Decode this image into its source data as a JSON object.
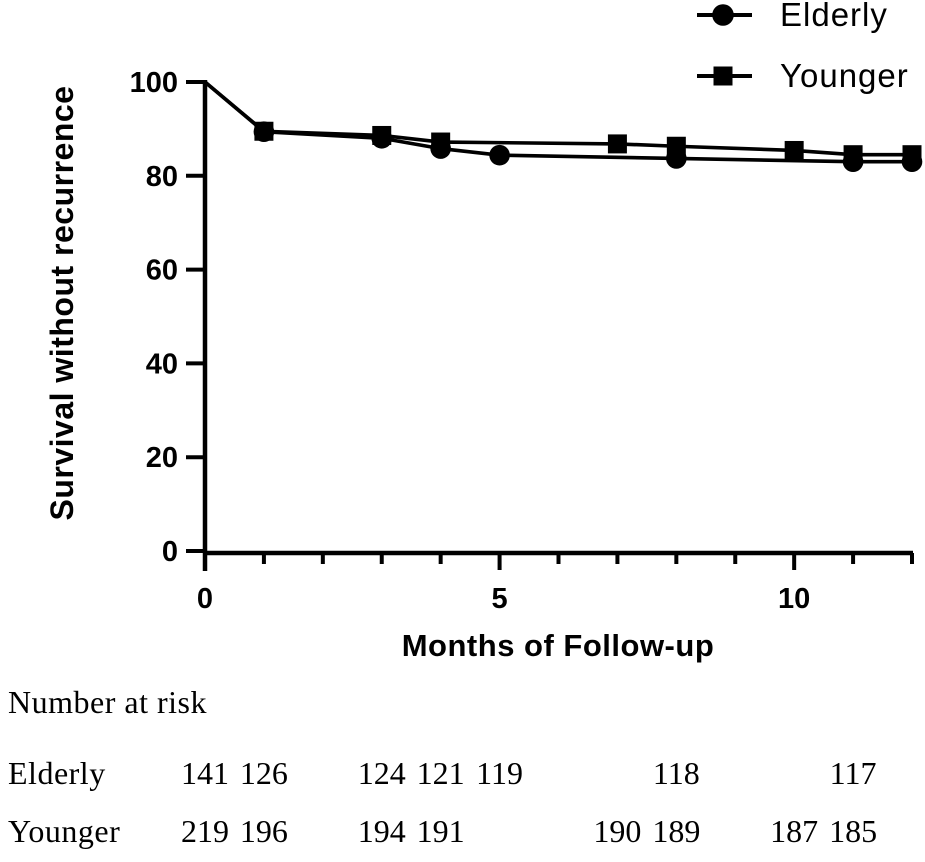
{
  "figure": {
    "background_color": "#ffffff",
    "ink_color": "#000000"
  },
  "chart_data": {
    "type": "line",
    "title": "",
    "xlabel": "Months of Follow-up",
    "ylabel": "Survival without recurrence",
    "xlim": [
      0,
      12
    ],
    "ylim": [
      0,
      100
    ],
    "x_major_ticks": [
      0,
      5,
      10
    ],
    "x_major_tick_labels": [
      "0",
      "5",
      "10"
    ],
    "x_minor_ticks": [
      1,
      2,
      3,
      4,
      6,
      7,
      8,
      9,
      11,
      12
    ],
    "y_ticks": [
      0,
      20,
      40,
      60,
      80,
      100
    ],
    "y_tick_labels": [
      "0",
      "20",
      "40",
      "60",
      "80",
      "100"
    ],
    "grid": false,
    "legend_position": "top-right",
    "series": [
      {
        "name": "Elderly",
        "marker": "circle",
        "color": "#000000",
        "x": [
          0,
          1,
          3,
          4,
          5,
          8,
          11,
          12
        ],
        "y": [
          100,
          89.4,
          88.0,
          85.8,
          84.4,
          83.7,
          83.0,
          83.0
        ]
      },
      {
        "name": "Younger",
        "marker": "square",
        "color": "#000000",
        "x": [
          0,
          1,
          3,
          4,
          7,
          8,
          10,
          11,
          12
        ],
        "y": [
          100,
          89.5,
          88.6,
          87.2,
          86.8,
          86.3,
          85.4,
          84.5,
          84.5
        ]
      }
    ]
  },
  "risk_table": {
    "heading": "Number at risk",
    "rows": [
      {
        "label": "Elderly",
        "months": [
          0,
          1,
          3,
          4,
          5,
          8,
          11
        ],
        "counts": [
          "141",
          "126",
          "124",
          "121",
          "119",
          "118",
          "117"
        ]
      },
      {
        "label": "Younger",
        "months": [
          0,
          1,
          3,
          4,
          7,
          8,
          10,
          11
        ],
        "counts": [
          "219",
          "196",
          "194",
          "191",
          "190",
          "189",
          "187",
          "185"
        ]
      }
    ]
  }
}
